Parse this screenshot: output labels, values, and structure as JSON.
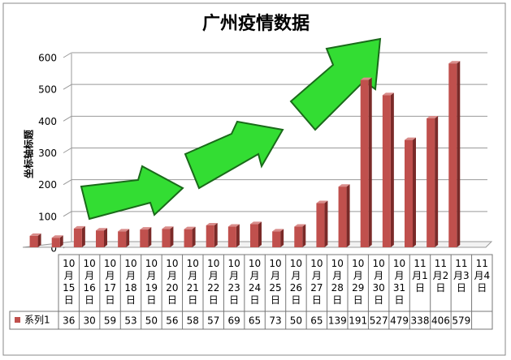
{
  "chart_data": {
    "type": "bar",
    "title": "广州疫情数据",
    "y_label": "坐标轴标题",
    "categories": [
      "10月15日",
      "10月16日",
      "10月17日",
      "10月18日",
      "10月19日",
      "10月20日",
      "10月21日",
      "10月22日",
      "10月23日",
      "10月24日",
      "10月25日",
      "10月26日",
      "10月27日",
      "10月28日",
      "10月29日",
      "10月30日",
      "10月31日",
      "11月1日",
      "11月2日",
      "11月3日",
      "11月4日"
    ],
    "series": [
      {
        "name": "系列1",
        "color": "#c0504d",
        "values": [
          36,
          30,
          59,
          53,
          50,
          56,
          58,
          57,
          69,
          65,
          73,
          50,
          65,
          139,
          191,
          527,
          479,
          338,
          406,
          579,
          null
        ]
      }
    ],
    "ylim": [
      0,
      600
    ],
    "yticks": [
      0,
      100,
      200,
      300,
      400,
      500,
      600
    ],
    "grid": true
  }
}
